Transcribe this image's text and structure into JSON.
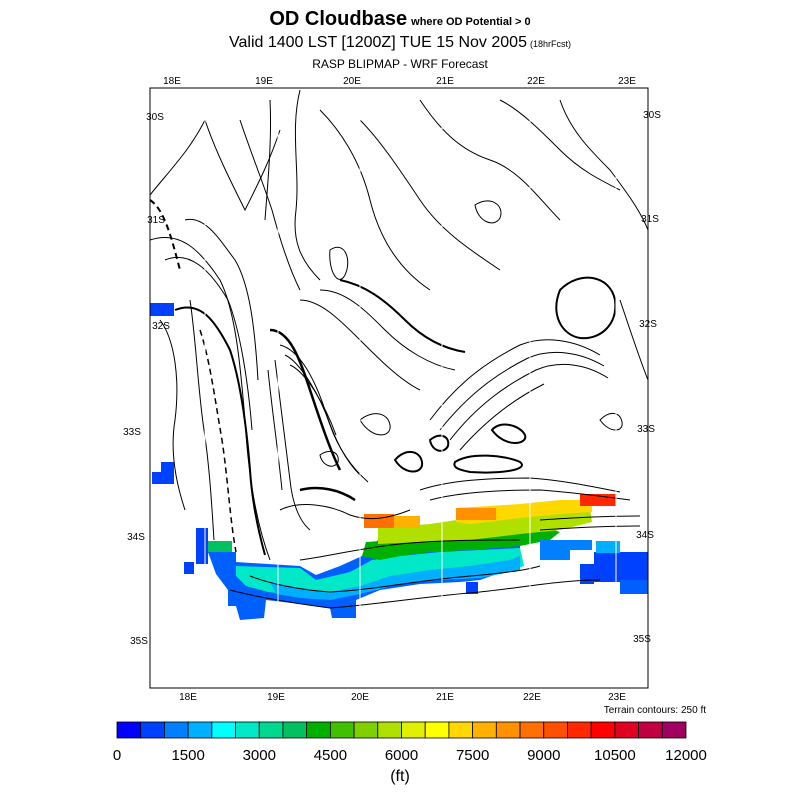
{
  "header": {
    "title": "OD Cloudbase",
    "title_sub": "where OD Potential > 0",
    "valid": "Valid 1400 LST [1200Z] TUE 15 Nov 2005",
    "forecast": "(18hrFcst)",
    "model": "RASP BLIPMAP - WRF Forecast"
  },
  "map": {
    "lon_labels_top": [
      "18E",
      "19E",
      "20E",
      "21E",
      "22E",
      "23E"
    ],
    "lon_labels_bottom": [
      "18E",
      "19E",
      "20E",
      "21E",
      "22E",
      "23E"
    ],
    "lat_labels_left": [
      "30S",
      "31S",
      "32S",
      "33S",
      "34S",
      "35S"
    ],
    "lat_labels_right": [
      "30S",
      "31S",
      "32S",
      "33S",
      "34S",
      "35S"
    ],
    "terrain_note": "Terrain contours: 250 ft"
  },
  "colorbar": {
    "colors": [
      "#0000ff",
      "#0040ff",
      "#0080ff",
      "#00b0ff",
      "#00ffff",
      "#00e8c8",
      "#00d890",
      "#00c060",
      "#00b000",
      "#40c000",
      "#80d000",
      "#b0e000",
      "#e0f000",
      "#ffff00",
      "#ffd800",
      "#ffb000",
      "#ff9000",
      "#ff7000",
      "#ff5000",
      "#ff2800",
      "#ff0000",
      "#e00020",
      "#c00040",
      "#a00060"
    ],
    "tick_labels": [
      "0",
      "1500",
      "3000",
      "4500",
      "6000",
      "7500",
      "9000",
      "10500",
      "12000"
    ],
    "unit": "(ft)"
  }
}
